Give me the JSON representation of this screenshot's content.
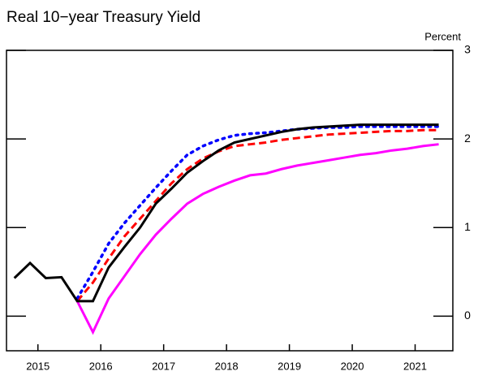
{
  "chart_data": {
    "type": "line",
    "title": "Real 10−year Treasury Yield",
    "y_label": "Percent",
    "x": [
      2015.125,
      2015.375,
      2015.625,
      2015.875,
      2016.125,
      2016.375,
      2016.625,
      2016.875,
      2017.125,
      2017.375,
      2017.625,
      2017.875,
      2018.125,
      2018.375,
      2018.625,
      2018.875,
      2019.125,
      2019.375,
      2019.625,
      2019.875,
      2020.125,
      2020.375,
      2020.625,
      2020.875,
      2021.125,
      2021.375,
      2021.625,
      2021.875
    ],
    "xlim": [
      2015,
      2022.1
    ],
    "xticks": [
      {
        "value": 2015.5,
        "label": "2015"
      },
      {
        "value": 2016.5,
        "label": "2016"
      },
      {
        "value": 2017.5,
        "label": "2017"
      },
      {
        "value": 2018.5,
        "label": "2018"
      },
      {
        "value": 2019.5,
        "label": "2019"
      },
      {
        "value": 2020.5,
        "label": "2020"
      },
      {
        "value": 2021.5,
        "label": "2021"
      }
    ],
    "ylim": [
      -0.39,
      3
    ],
    "yticks": [
      0,
      1,
      2,
      3
    ],
    "series": [
      {
        "color": "#ff00ff",
        "dash": "solid",
        "values": [
          null,
          null,
          null,
          null,
          0.17,
          -0.18,
          0.2,
          0.45,
          0.7,
          0.92,
          1.1,
          1.27,
          1.38,
          1.46,
          1.53,
          1.59,
          1.61,
          1.66,
          1.7,
          1.73,
          1.76,
          1.79,
          1.82,
          1.84,
          1.87,
          1.89,
          1.92,
          1.94
        ]
      },
      {
        "color": "#ff0000",
        "dash": "dashed",
        "values": [
          null,
          null,
          null,
          null,
          0.17,
          0.38,
          0.65,
          0.9,
          1.1,
          1.3,
          1.5,
          1.66,
          1.78,
          1.86,
          1.92,
          1.94,
          1.96,
          1.99,
          2.01,
          2.03,
          2.05,
          2.06,
          2.07,
          2.08,
          2.09,
          2.09,
          2.1,
          2.1
        ]
      },
      {
        "color": "#0000ff",
        "dash": "dotted",
        "values": [
          null,
          null,
          null,
          null,
          0.2,
          0.5,
          0.82,
          1.05,
          1.25,
          1.45,
          1.64,
          1.82,
          1.92,
          1.99,
          2.04,
          2.06,
          2.07,
          2.09,
          2.11,
          2.12,
          2.13,
          2.13,
          2.14,
          2.14,
          2.14,
          2.14,
          2.14,
          2.14
        ]
      },
      {
        "color": "#000000",
        "dash": "solid",
        "values": [
          0.43,
          0.6,
          0.43,
          0.44,
          0.17,
          0.17,
          0.55,
          0.78,
          1.0,
          1.27,
          1.44,
          1.62,
          1.75,
          1.87,
          1.96,
          2.0,
          2.04,
          2.08,
          2.11,
          2.13,
          2.14,
          2.15,
          2.16,
          2.16,
          2.16,
          2.16,
          2.16,
          2.16
        ]
      }
    ]
  }
}
